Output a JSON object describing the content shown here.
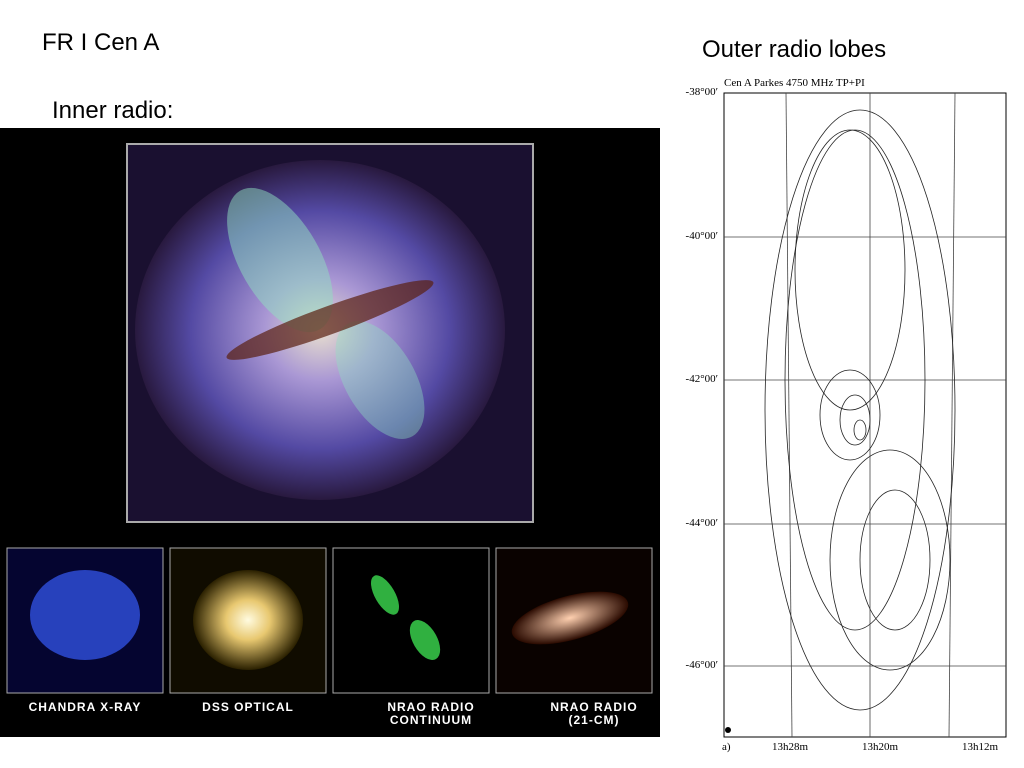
{
  "header": {
    "title": "FR I  Cen A",
    "inner_label": "Inner radio:",
    "outer_label": "Outer radio lobes"
  },
  "left_image": {
    "panels": [
      {
        "lines": [
          "Chandra X-ray"
        ]
      },
      {
        "lines": [
          "DSS Optical"
        ]
      },
      {
        "lines": [
          "NRAO Radio",
          "Continuum"
        ]
      },
      {
        "lines": [
          "NRAO Radio",
          "(21-cm)"
        ]
      }
    ]
  },
  "right_image": {
    "plot_title": "Cen A Parkes 4750 MHz TP+PI",
    "dec_labels": [
      "-38°00′",
      "-40°00′",
      "-42°00′",
      "-44°00′",
      "-46°00′"
    ],
    "ra_labels": [
      "13h28m",
      "13h20m",
      "13h12m"
    ],
    "panel_letter": "a)"
  }
}
